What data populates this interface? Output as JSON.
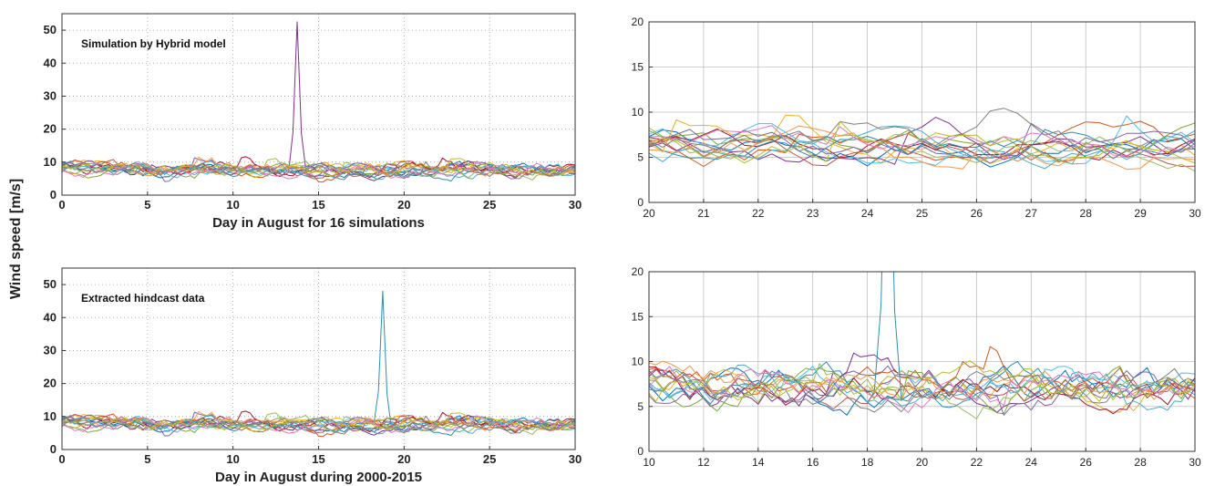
{
  "figure": {
    "shared_ylabel": "Wind speed [m/s]"
  },
  "chart_data": [
    {
      "id": "a",
      "type": "line",
      "annotation": "Simulation by Hybrid model",
      "xlabel": "Day in August for 16 simulations",
      "ylabel": "",
      "xlim": [
        0,
        30
      ],
      "ylim": [
        0,
        55
      ],
      "xticks": [
        0,
        5,
        10,
        15,
        20,
        25,
        30
      ],
      "yticks": [
        0,
        10,
        20,
        30,
        40,
        50
      ],
      "grid": "dotted",
      "series_count": 16,
      "x_step": 0.25,
      "baseline_range": [
        2,
        15
      ],
      "peak": {
        "x": 13.75,
        "y": 52.5,
        "width_days": 0.5,
        "color": "#7e2f8e"
      }
    },
    {
      "id": "b",
      "type": "line",
      "annotation": "",
      "xlabel": "",
      "ylabel": "",
      "xlim": [
        20,
        30
      ],
      "ylim": [
        0,
        20
      ],
      "xticks": [
        20,
        21,
        22,
        23,
        24,
        25,
        26,
        27,
        28,
        29,
        30
      ],
      "yticks": [
        0,
        5,
        10,
        15,
        20
      ],
      "grid": "solid",
      "series_count": 16,
      "x_step": 0.25,
      "baseline_range": [
        1,
        13
      ],
      "peak": null
    },
    {
      "id": "c",
      "type": "line",
      "annotation": "Extracted hindcast data",
      "xlabel": "Day in August during 2000-2015",
      "ylabel": "",
      "xlim": [
        0,
        30
      ],
      "ylim": [
        0,
        55
      ],
      "xticks": [
        0,
        5,
        10,
        15,
        20,
        25,
        30
      ],
      "yticks": [
        0,
        10,
        20,
        30,
        40,
        50
      ],
      "grid": "dotted",
      "series_count": 16,
      "x_step": 0.25,
      "baseline_range": [
        1,
        16
      ],
      "peak": {
        "x": 18.75,
        "y": 48,
        "width_days": 0.5,
        "color": "#2a8fb0"
      }
    },
    {
      "id": "d",
      "type": "line",
      "annotation": "",
      "xlabel": "",
      "ylabel": "",
      "xlim": [
        10,
        30
      ],
      "ylim": [
        0,
        20
      ],
      "xticks": [
        10,
        12,
        14,
        16,
        18,
        20,
        22,
        24,
        26,
        28,
        30
      ],
      "yticks": [
        0,
        5,
        10,
        15,
        20
      ],
      "grid": "solid",
      "series_count": 16,
      "x_step": 0.25,
      "baseline_range": [
        1,
        15
      ],
      "peak": {
        "x": 18.75,
        "y": 48,
        "width_days": 0.5,
        "color": "#2a8fb0"
      }
    }
  ],
  "colors": {
    "series_palette": [
      "#0072bd",
      "#d95319",
      "#edb120",
      "#7e2f8e",
      "#77ac30",
      "#4dbeee",
      "#a2142f",
      "#2a8fb0",
      "#c0504d",
      "#9bbb59",
      "#8064a2",
      "#f79646",
      "#4bacc6",
      "#e377c2",
      "#7f7f7f",
      "#bcbd22"
    ]
  }
}
